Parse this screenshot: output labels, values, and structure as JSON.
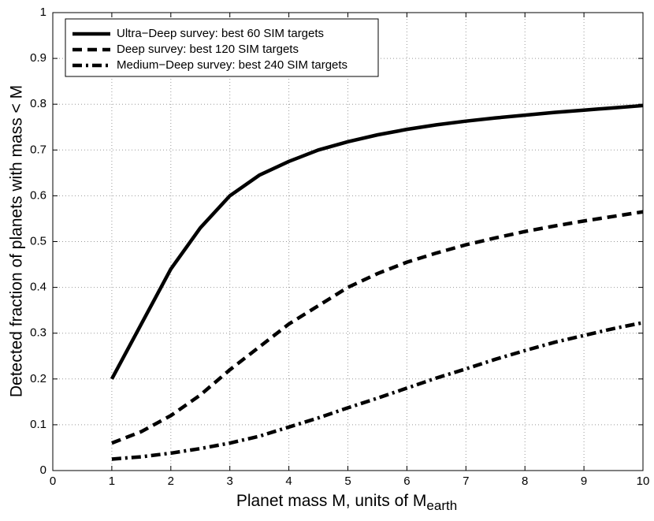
{
  "chart_data": {
    "type": "line",
    "xlabel": "Planet mass M, units of M",
    "xlabel_subscript": "earth",
    "ylabel": "Detected fraction of planets with mass < M",
    "x": [
      1,
      1.5,
      2,
      2.5,
      3,
      3.5,
      4,
      4.5,
      5,
      5.5,
      6,
      6.5,
      7,
      7.5,
      8,
      8.5,
      9,
      9.5,
      10
    ],
    "series": [
      {
        "name": "Ultra−Deep survey: best 60 SIM targets",
        "color": "#000000",
        "linestyle": "solid",
        "values": [
          0.2,
          0.32,
          0.44,
          0.53,
          0.6,
          0.645,
          0.675,
          0.7,
          0.718,
          0.733,
          0.745,
          0.755,
          0.763,
          0.77,
          0.776,
          0.782,
          0.787,
          0.792,
          0.797
        ]
      },
      {
        "name": "Deep survey: best 120 SIM targets",
        "color": "#000000",
        "linestyle": "dashed",
        "values": [
          0.06,
          0.085,
          0.12,
          0.165,
          0.22,
          0.27,
          0.32,
          0.36,
          0.4,
          0.43,
          0.455,
          0.475,
          0.493,
          0.508,
          0.522,
          0.534,
          0.545,
          0.555,
          0.565
        ]
      },
      {
        "name": "Medium−Deep survey: best 240 SIM targets",
        "color": "#000000",
        "linestyle": "dashdot",
        "values": [
          0.025,
          0.03,
          0.038,
          0.048,
          0.06,
          0.075,
          0.095,
          0.115,
          0.137,
          0.158,
          0.18,
          0.202,
          0.222,
          0.243,
          0.262,
          0.28,
          0.295,
          0.31,
          0.323
        ]
      }
    ],
    "xlim": [
      0,
      10
    ],
    "xticks": [
      0,
      1,
      2,
      3,
      4,
      5,
      6,
      7,
      8,
      9,
      10
    ],
    "ylim": [
      0,
      1
    ],
    "yticks": [
      0,
      0.1,
      0.2,
      0.3,
      0.4,
      0.5,
      0.6,
      0.7,
      0.8,
      0.9,
      1
    ],
    "grid": true,
    "legend": "upper left"
  }
}
